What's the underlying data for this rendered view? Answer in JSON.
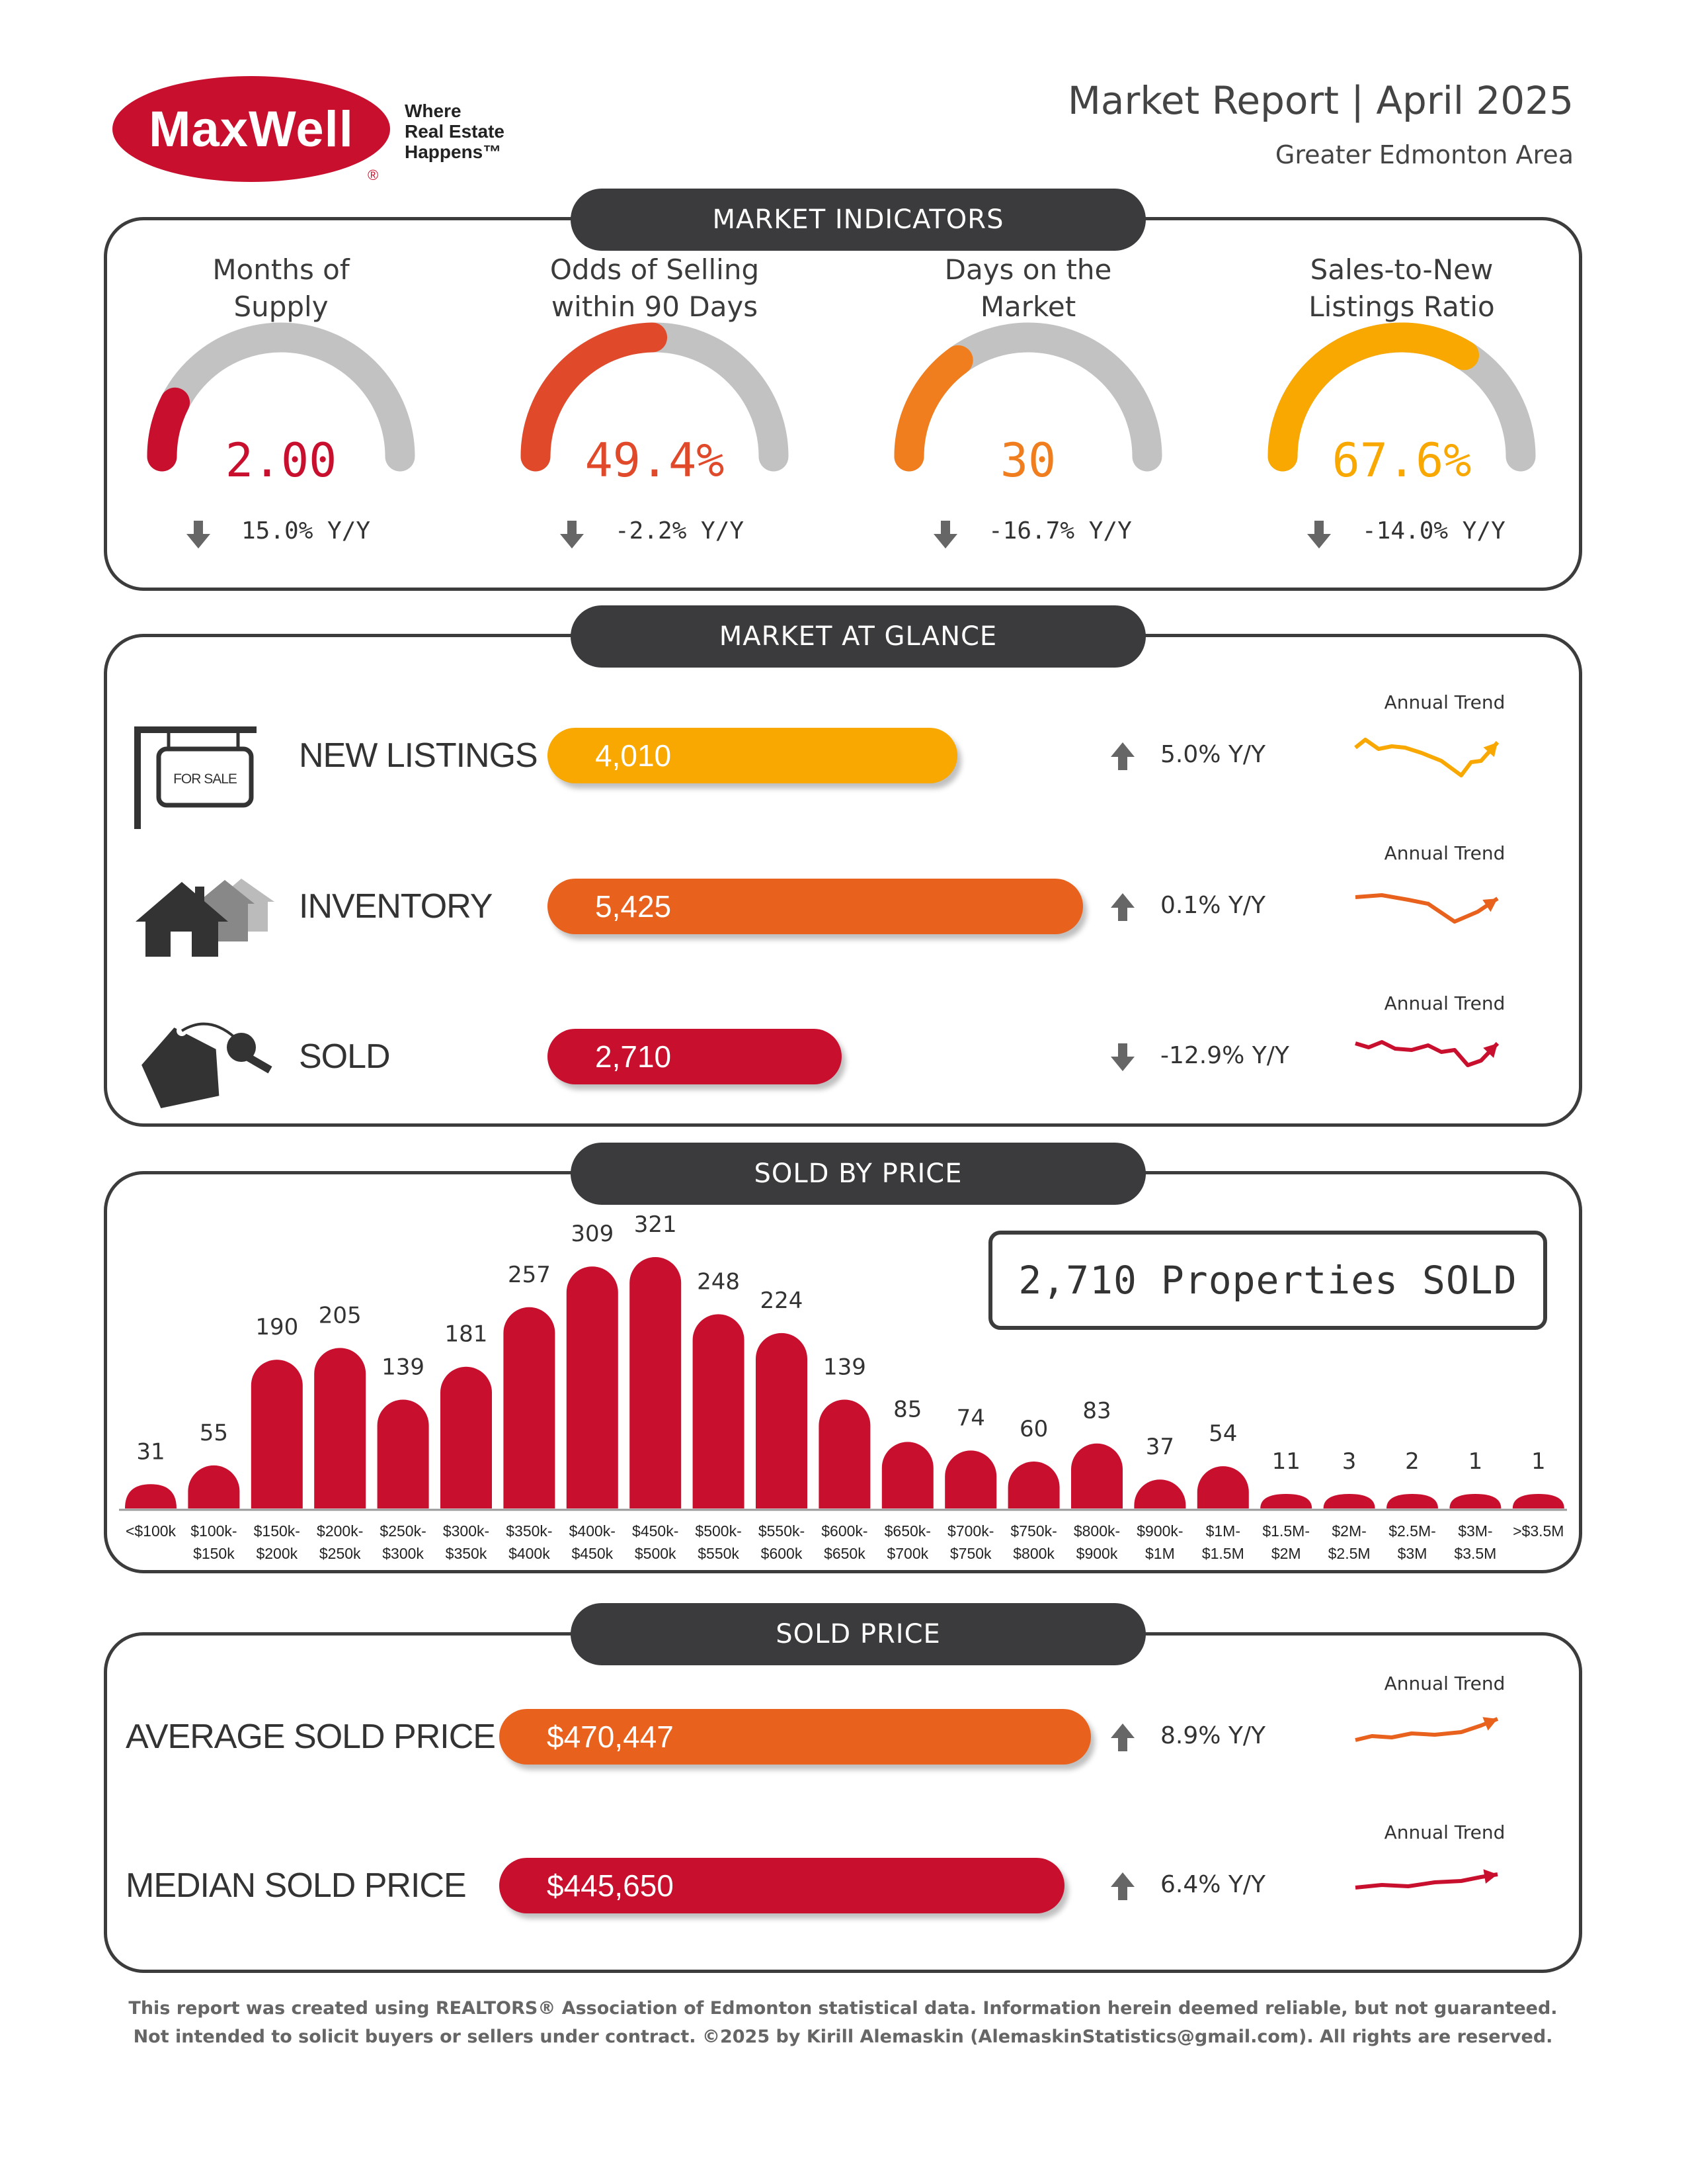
{
  "header": {
    "logo_text": "MaxWell",
    "logo_mark": "®",
    "tagline_1": "Where",
    "tagline_2": "Real Estate",
    "tagline_3": "Happens™",
    "title": "Market Report | April 2025",
    "subtitle": "Greater Edmonton Area"
  },
  "sections": {
    "indicators": "MARKET INDICATORS",
    "glance": "MARKET AT GLANCE",
    "by_price": "SOLD BY PRICE",
    "sold_price": "SOLD PRICE"
  },
  "indicators": [
    {
      "title_1": "Months of",
      "title_2": "Supply",
      "value": "2.00",
      "change": "15.0% Y/Y",
      "direction": "down",
      "fill_fraction": 0.15,
      "color": "#c8102e"
    },
    {
      "title_1": "Odds of Selling",
      "title_2": "within 90 Days",
      "value": "49.4%",
      "change": "-2.2% Y/Y",
      "direction": "down",
      "fill_fraction": 0.494,
      "color": "#e04a2a"
    },
    {
      "title_1": "Days on the",
      "title_2": "Market",
      "value": "30",
      "change": "-16.7% Y/Y",
      "direction": "down",
      "fill_fraction": 0.3,
      "color": "#f07e1e"
    },
    {
      "title_1": "Sales-to-New",
      "title_2": "Listings Ratio",
      "value": "67.6%",
      "change": "-14.0% Y/Y",
      "direction": "down",
      "fill_fraction": 0.676,
      "color": "#f8a800"
    }
  ],
  "glance": [
    {
      "label": "NEW LISTINGS",
      "value": "4,010",
      "change": "5.0% Y/Y",
      "direction": "up",
      "trend_label": "Annual Trend",
      "color": "#f8a800",
      "sign_text": "FOR SALE"
    },
    {
      "label": "INVENTORY",
      "value": "5,425",
      "change": "0.1% Y/Y",
      "direction": "up",
      "trend_label": "Annual Trend",
      "color": "#e8621e"
    },
    {
      "label": "SOLD",
      "value": "2,710",
      "change": "-12.9% Y/Y",
      "direction": "down",
      "trend_label": "Annual Trend",
      "color": "#c8102e"
    }
  ],
  "sold_box": "2,710 Properties SOLD",
  "chart_data": {
    "type": "bar",
    "categories": [
      "<$100k",
      "$100k-\n$150k",
      "$150k-\n$200k",
      "$200k-\n$250k",
      "$250k-\n$300k",
      "$300k-\n$350k",
      "$350k-\n$400k",
      "$400k-\n$450k",
      "$450k-\n$500k",
      "$500k-\n$550k",
      "$550k-\n$600k",
      "$600k-\n$650k",
      "$650k-\n$700k",
      "$700k-\n$750k",
      "$750k-\n$800k",
      "$800k-\n$900k",
      "$900k-\n$1M",
      "$1M-\n$1.5M",
      "$1.5M-\n$2M",
      "$2M-\n$2.5M",
      "$2.5M-\n$3M",
      "$3M-\n$3.5M",
      ">$3.5M"
    ],
    "values": [
      31,
      55,
      190,
      205,
      139,
      181,
      257,
      309,
      321,
      248,
      224,
      139,
      85,
      74,
      60,
      83,
      37,
      54,
      11,
      3,
      2,
      1,
      1
    ],
    "title": "",
    "xlabel": "",
    "ylabel": "",
    "color": "#c8102e",
    "grid": false
  },
  "sold_price": [
    {
      "label": "AVERAGE SOLD PRICE",
      "value": "$470,447",
      "change": "8.9% Y/Y",
      "direction": "up",
      "trend_label": "Annual Trend",
      "color": "#e8621e"
    },
    {
      "label": "MEDIAN SOLD PRICE",
      "value": "$445,650",
      "change": "6.4% Y/Y",
      "direction": "up",
      "trend_label": "Annual Trend",
      "color": "#c8102e"
    }
  ],
  "footer": {
    "line_1": "This report was created using REALTORS® Association of Edmonton statistical data. Information herein deemed reliable, but not guaranteed.",
    "line_2": "Not intended to solicit buyers or sellers under contract. ©2025 by Kirill Alemaskin (AlemaskinStatistics@gmail.com). All rights are reserved."
  }
}
